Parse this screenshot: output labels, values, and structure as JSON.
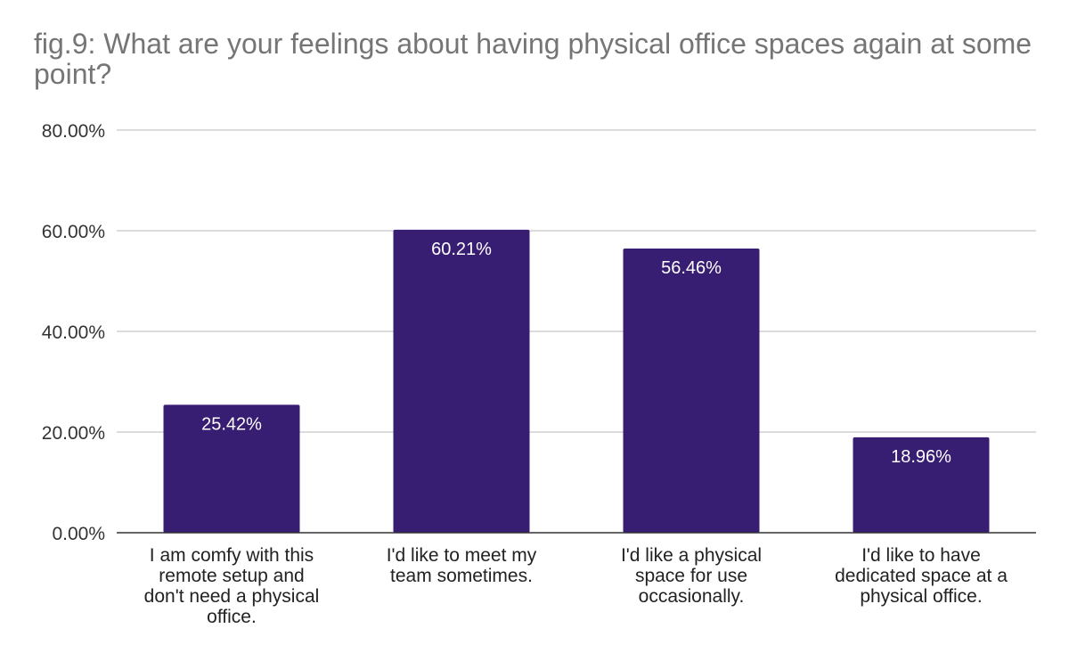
{
  "chart_data": {
    "type": "bar",
    "title": "fig.9: What are your feelings about having physical office spaces again at some point?",
    "categories": [
      [
        "I am comfy with this",
        "remote setup and",
        "don't need a physical",
        "office."
      ],
      [
        "I'd like to meet my",
        "team sometimes."
      ],
      [
        "I'd like a physical",
        "space for use",
        "occasionally."
      ],
      [
        "I'd like to have",
        "dedicated space at a",
        "physical office."
      ]
    ],
    "values": [
      25.42,
      60.21,
      56.46,
      18.96
    ],
    "data_labels": [
      "25.42%",
      "60.21%",
      "56.46%",
      "18.96%"
    ],
    "y_ticks": [
      "0.00%",
      "20.00%",
      "40.00%",
      "60.00%",
      "80.00%"
    ],
    "y_tick_values": [
      0,
      20,
      40,
      60,
      80
    ],
    "ylim": [
      0,
      80
    ],
    "xlabel": "",
    "ylabel": "",
    "grid": true,
    "legend": "none",
    "bar_color": "#371e72",
    "grid_color": "#c8c8c8",
    "axis_color": "#333333",
    "title_color": "#757575"
  }
}
